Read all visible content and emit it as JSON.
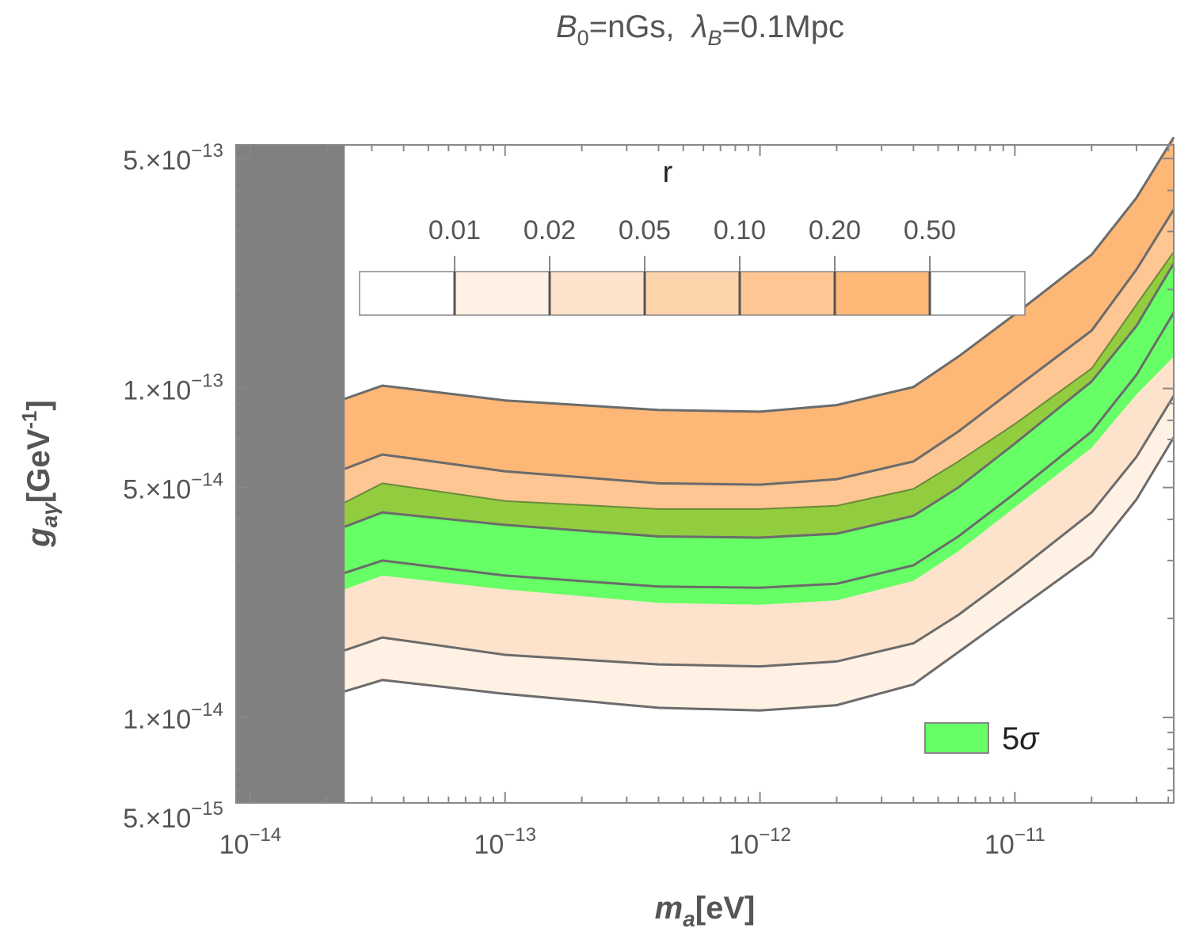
{
  "chart_data": {
    "type": "contour",
    "title": {
      "pre": "B",
      "pre_sub": "0",
      "mid": "=nGs,  ",
      "lambda": "λ",
      "lambda_sub": "B",
      "post": "=0.1Mpc"
    },
    "xlabel": {
      "main": "m",
      "sub": "a",
      "unit": "[eV]"
    },
    "ylabel": {
      "main": "g",
      "sub": "aγ",
      "unit_pre": "[GeV",
      "unit_sup": "-1",
      "unit_post": "]"
    },
    "xlim": [
      8.8e-15,
      4.2e-11
    ],
    "ylim": [
      5.5e-15,
      5.5e-13
    ],
    "xscale": "log",
    "yscale": "log",
    "x_ticks": [
      {
        "value": 1e-14,
        "base": "10",
        "exp": "−14"
      },
      {
        "value": 1e-13,
        "base": "10",
        "exp": "−13"
      },
      {
        "value": 1e-12,
        "base": "10",
        "exp": "−12"
      },
      {
        "value": 1e-11,
        "base": "10",
        "exp": "−11"
      }
    ],
    "y_ticks": [
      {
        "value": 5e-13,
        "mant": "5.×10",
        "exp": "−13"
      },
      {
        "value": 1e-13,
        "mant": "1.×10",
        "exp": "−13"
      },
      {
        "value": 5e-14,
        "mant": "5.×10",
        "exp": "−14"
      },
      {
        "value": 1e-14,
        "mant": "1.×10",
        "exp": "−14"
      },
      {
        "value": 5e-15,
        "mant": "5.×10",
        "exp": "−15"
      }
    ],
    "excluded_region": {
      "x_min": 8.8e-15,
      "x_max": 2.35e-14,
      "color": "#808080"
    },
    "colorbar": {
      "title": "r",
      "levels": [
        "0.01",
        "0.02",
        "0.05",
        "0.10",
        "0.20",
        "0.50"
      ],
      "colors": [
        "#ffffff",
        "#fff1e4",
        "#fde3cb",
        "#fdd3ab",
        "#fdc692",
        "#fdb777",
        "#ffffff"
      ]
    },
    "contours": {
      "x": [
        2.35e-14,
        3.3e-14,
        1e-13,
        4e-13,
        1e-12,
        2e-12,
        4e-12,
        6e-12,
        1e-11,
        2e-11,
        3e-11,
        4.2e-11
      ],
      "levels": [
        {
          "r": "0.01",
          "y": [
            1.2e-14,
            1.3e-14,
            1.18e-14,
            1.07e-14,
            1.05e-14,
            1.09e-14,
            1.26e-14,
            1.58e-14,
            2.1e-14,
            3.1e-14,
            4.6e-14,
            7.1e-14
          ]
        },
        {
          "r": "0.02",
          "y": [
            1.6e-14,
            1.75e-14,
            1.55e-14,
            1.45e-14,
            1.43e-14,
            1.48e-14,
            1.68e-14,
            2.05e-14,
            2.75e-14,
            4.2e-14,
            6.2e-14,
            9.5e-14
          ]
        },
        {
          "r": "0.05",
          "y": [
            2.75e-14,
            3e-14,
            2.7e-14,
            2.5e-14,
            2.48e-14,
            2.55e-14,
            2.9e-14,
            3.55e-14,
            4.8e-14,
            7.4e-14,
            1.1e-13,
            1.7e-13
          ]
        },
        {
          "r": "0.10",
          "y": [
            3.8e-14,
            4.2e-14,
            3.85e-14,
            3.55e-14,
            3.52e-14,
            3.62e-14,
            4.1e-14,
            5e-14,
            6.8e-14,
            1.05e-13,
            1.55e-13,
            2.4e-13
          ]
        },
        {
          "r": "0.20",
          "y": [
            5.7e-14,
            6.3e-14,
            5.6e-14,
            5.15e-14,
            5.1e-14,
            5.3e-14,
            6e-14,
            7.4e-14,
            1e-13,
            1.5e-13,
            2.3e-13,
            3.5e-13
          ]
        },
        {
          "r": "0.50",
          "y": [
            9.3e-14,
            1.02e-13,
            9.2e-14,
            8.6e-14,
            8.5e-14,
            8.9e-14,
            1.01e-13,
            1.25e-13,
            1.68e-13,
            2.55e-13,
            3.8e-13,
            5.8e-13
          ]
        }
      ]
    },
    "sigma5_band": {
      "label_num": "5",
      "label_sym": "σ",
      "x": [
        2.35e-14,
        3.3e-14,
        1e-13,
        4e-13,
        1e-12,
        2e-12,
        4e-12,
        6e-12,
        1e-11,
        2e-11,
        3e-11,
        4.2e-11
      ],
      "y_low": [
        2.45e-14,
        2.7e-14,
        2.45e-14,
        2.23e-14,
        2.2e-14,
        2.27e-14,
        2.6e-14,
        3.2e-14,
        4.35e-14,
        6.6e-14,
        9.6e-14,
        1.25e-13
      ],
      "y_high": [
        4.5e-14,
        5.15e-14,
        4.55e-14,
        4.3e-14,
        4.3e-14,
        4.4e-14,
        4.95e-14,
        6e-14,
        7.8e-14,
        1.15e-13,
        1.8e-13,
        2.6e-13
      ],
      "low_color": "#66ff66",
      "high_color": "#8ccd3c"
    },
    "legend": {
      "position": "bottom-right",
      "swatch_color": "#66ff66"
    }
  }
}
